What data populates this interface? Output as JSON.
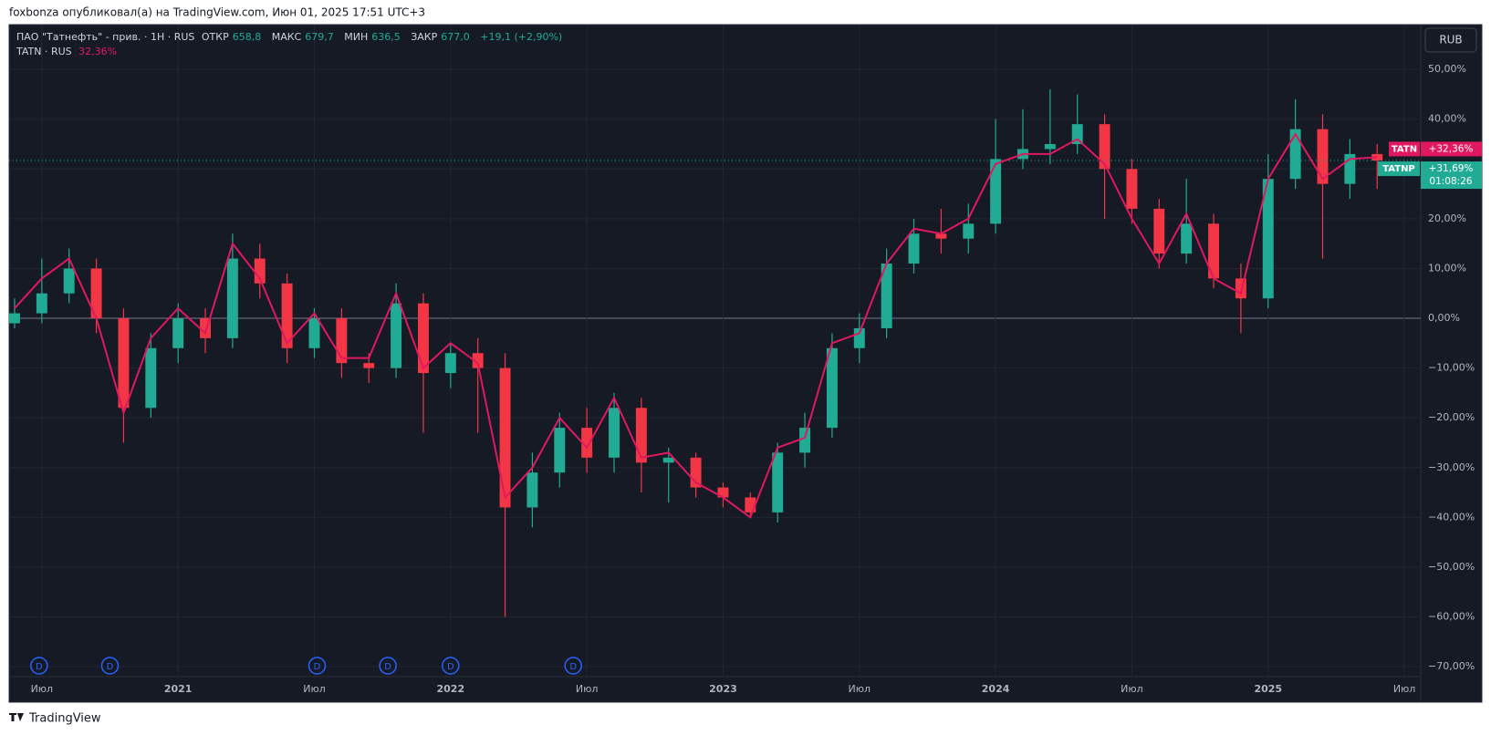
{
  "chart_data": {
    "type": "candlestick",
    "header": "foxbonza опубликовал(а) на TradingView.com, Июн 01, 2025 17:51 UTC+3",
    "legend": {
      "title": "ПАО \"Татнефть\" - прив. · 1Н · RUS",
      "items": [
        {
          "label": "ОТКР",
          "value": "658,8"
        },
        {
          "label": "МАКС",
          "value": "679,7"
        },
        {
          "label": "МИН",
          "value": "636,5"
        },
        {
          "label": "ЗАКР",
          "value": "677,0"
        }
      ],
      "change": "+19,1 (+2,90%)"
    },
    "currency": "RUB",
    "brand": "TradingView",
    "x": [
      2020.4,
      2020.5,
      2020.6,
      2020.7,
      2020.8,
      2020.9,
      2021.0,
      2021.1,
      2021.2,
      2021.3,
      2021.4,
      2021.5,
      2021.6,
      2021.7,
      2021.8,
      2021.9,
      2022.0,
      2022.1,
      2022.2,
      2022.3,
      2022.4,
      2022.5,
      2022.6,
      2022.7,
      2022.8,
      2022.9,
      2023.0,
      2023.1,
      2023.2,
      2023.3,
      2023.4,
      2023.5,
      2023.6,
      2023.7,
      2023.8,
      2023.9,
      2024.0,
      2024.1,
      2024.2,
      2024.3,
      2024.4,
      2024.5,
      2024.6,
      2024.7,
      2024.8,
      2024.9,
      2025.0,
      2025.1,
      2025.2,
      2025.3,
      2025.4
    ],
    "series": [
      {
        "name": "TATNP",
        "type": "candlestick",
        "up_color": "#22ab94",
        "down_color": "#f23645",
        "last_label": "+31,69%",
        "countdown": "01:08:26",
        "open": [
          -1,
          1,
          5,
          10,
          0,
          -18,
          -6,
          0,
          -4,
          12,
          7,
          -6,
          0,
          -9,
          -10,
          3,
          -11,
          -7,
          -10,
          -38,
          -31,
          -22,
          -28,
          -18,
          -29,
          -28,
          -34,
          -36,
          -39,
          -27,
          -22,
          -6,
          -2,
          11,
          17,
          16,
          19,
          32,
          34,
          35,
          39,
          30,
          22,
          13,
          19,
          8,
          4,
          28,
          38,
          27,
          33
        ],
        "high": [
          4,
          12,
          14,
          12,
          2,
          -3,
          3,
          2,
          17,
          15,
          9,
          2,
          2,
          -7,
          7,
          5,
          -5,
          -4,
          -7,
          -27,
          -19,
          -18,
          -15,
          -16,
          -26,
          -27,
          -33,
          -35,
          -25,
          -19,
          -3,
          1,
          14,
          20,
          22,
          23,
          40,
          42,
          46,
          45,
          41,
          32,
          24,
          28,
          21,
          11,
          33,
          44,
          41,
          36,
          35
        ],
        "low": [
          -2,
          -1,
          3,
          -3,
          -25,
          -20,
          -9,
          -7,
          -6,
          4,
          -9,
          -8,
          -12,
          -13,
          -12,
          -23,
          -14,
          -23,
          -60,
          -42,
          -34,
          -31,
          -31,
          -35,
          -37,
          -36,
          -38,
          -40,
          -41,
          -30,
          -24,
          -9,
          -4,
          9,
          13,
          13,
          17,
          30,
          31,
          33,
          20,
          19,
          10,
          11,
          6,
          -3,
          2,
          26,
          12,
          24,
          26
        ],
        "close": [
          1,
          5,
          10,
          0,
          -18,
          -6,
          0,
          -4,
          12,
          7,
          -6,
          0,
          -9,
          -10,
          3,
          -11,
          -7,
          -10,
          -38,
          -31,
          -22,
          -28,
          -18,
          -29,
          -28,
          -34,
          -36,
          -39,
          -27,
          -22,
          -6,
          -2,
          11,
          17,
          16,
          19,
          32,
          34,
          35,
          39,
          30,
          22,
          13,
          19,
          8,
          4,
          28,
          38,
          27,
          33,
          31.69
        ]
      },
      {
        "name": "TATN",
        "type": "line",
        "color": "#e0185f",
        "legend_name": "TATN · RUS",
        "legend_value": "32,36%",
        "last_label": "+32,36%",
        "values": [
          2,
          8,
          12,
          0,
          -19,
          -4,
          2,
          -3,
          15,
          8,
          -5,
          1,
          -8,
          -8,
          5,
          -10,
          -5,
          -9,
          -36,
          -30,
          -20,
          -26,
          -16,
          -28,
          -27,
          -33,
          -36,
          -40,
          -26,
          -24,
          -5,
          -3,
          11,
          18,
          17,
          20,
          31,
          33,
          33,
          36,
          31,
          20,
          11,
          21,
          8,
          5,
          28,
          37,
          28,
          32,
          32.36
        ]
      }
    ],
    "dividends": {
      "label": "D",
      "x": [
        2020.49,
        2020.75,
        2021.51,
        2021.77,
        2022.0,
        2022.45
      ]
    },
    "xlim": [
      2020.38,
      2025.56
    ],
    "xticks": [
      {
        "value": 2020.5,
        "label": "Июл"
      },
      2021,
      {
        "value": 2021.5,
        "label": "Июл"
      },
      2022,
      {
        "value": 2022.5,
        "label": "Июл"
      },
      2023,
      {
        "value": 2023.5,
        "label": "Июл"
      },
      2024,
      {
        "value": 2024.5,
        "label": "Июл"
      },
      2025,
      {
        "value": 2025.5,
        "label": "Июл"
      }
    ],
    "ylim": [
      -72,
      59
    ],
    "yticks": [
      {
        "value": 50,
        "label": "50,00%"
      },
      {
        "value": 40,
        "label": "40,00%"
      },
      {
        "value": 30,
        "label": "30,00%"
      },
      {
        "value": 20,
        "label": "20,00%"
      },
      {
        "value": 10,
        "label": "10,00%"
      },
      {
        "value": 0,
        "label": "0,00%"
      },
      {
        "value": -10,
        "label": "−10,00%"
      },
      {
        "value": -20,
        "label": "−20,00%"
      },
      {
        "value": -30,
        "label": "−30,00%"
      },
      {
        "value": -40,
        "label": "−40,00%"
      },
      {
        "value": -50,
        "label": "−50,00%"
      },
      {
        "value": -60,
        "label": "−60,00%"
      },
      {
        "value": -70,
        "label": "−70,00%"
      }
    ],
    "grid": true
  }
}
